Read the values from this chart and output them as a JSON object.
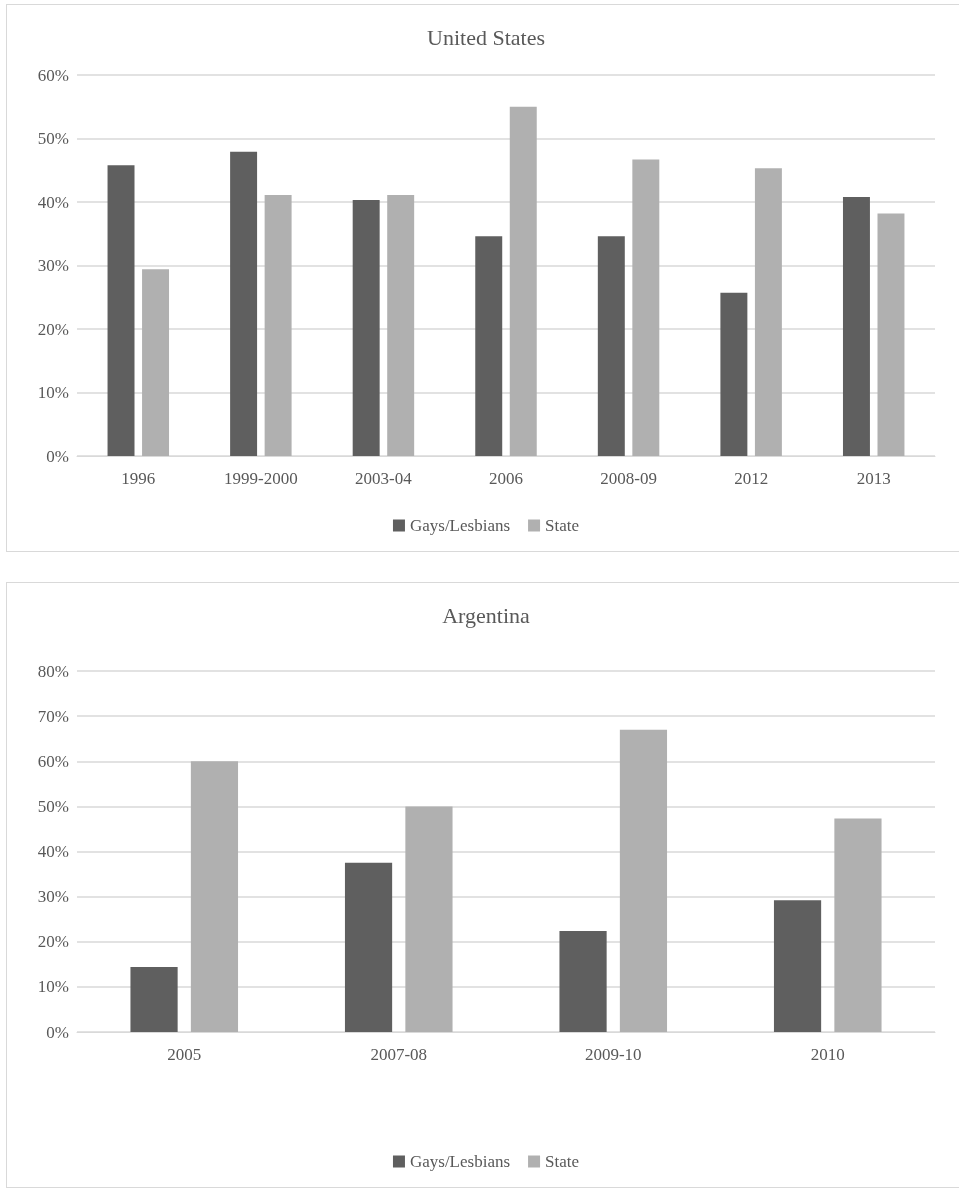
{
  "chart_data": [
    {
      "type": "bar",
      "title": "United States",
      "categories": [
        "1996",
        "1999-2000",
        "2003-04",
        "2006",
        "2008-09",
        "2012",
        "2013"
      ],
      "series": [
        {
          "name": "Gays/Lesbians",
          "color": "#5f5f5f",
          "values": [
            0.458,
            0.479,
            0.403,
            0.346,
            0.346,
            0.257,
            0.408
          ]
        },
        {
          "name": "State",
          "color": "#b0b0b0",
          "values": [
            0.294,
            0.411,
            0.411,
            0.55,
            0.467,
            0.453,
            0.382
          ]
        }
      ],
      "ylim": [
        0,
        0.6
      ],
      "yticks": [
        {
          "value": 0,
          "label": "0%"
        },
        {
          "value": 0.1,
          "label": "10%"
        },
        {
          "value": 0.2,
          "label": "20%"
        },
        {
          "value": 0.3,
          "label": "30%"
        },
        {
          "value": 0.4,
          "label": "40%"
        },
        {
          "value": 0.5,
          "label": "50%"
        },
        {
          "value": 0.6,
          "label": "60%"
        }
      ],
      "grid": "y",
      "legend": "bottom"
    },
    {
      "type": "bar",
      "title": "Argentina",
      "categories": [
        "2005",
        "2007-08",
        "2009-10",
        "2010"
      ],
      "series": [
        {
          "name": "Gays/Lesbians",
          "color": "#5f5f5f",
          "values": [
            0.144,
            0.375,
            0.224,
            0.292
          ]
        },
        {
          "name": "State",
          "color": "#b0b0b0",
          "values": [
            0.6,
            0.5,
            0.67,
            0.473
          ]
        }
      ],
      "ylim": [
        0,
        0.8
      ],
      "yticks": [
        {
          "value": 0,
          "label": "0%"
        },
        {
          "value": 0.1,
          "label": "10%"
        },
        {
          "value": 0.2,
          "label": "20%"
        },
        {
          "value": 0.3,
          "label": "30%"
        },
        {
          "value": 0.4,
          "label": "40%"
        },
        {
          "value": 0.5,
          "label": "50%"
        },
        {
          "value": 0.6,
          "label": "60%"
        },
        {
          "value": 0.7,
          "label": "70%"
        },
        {
          "value": 0.8,
          "label": "80%"
        }
      ],
      "grid": "y",
      "legend": "bottom"
    }
  ]
}
